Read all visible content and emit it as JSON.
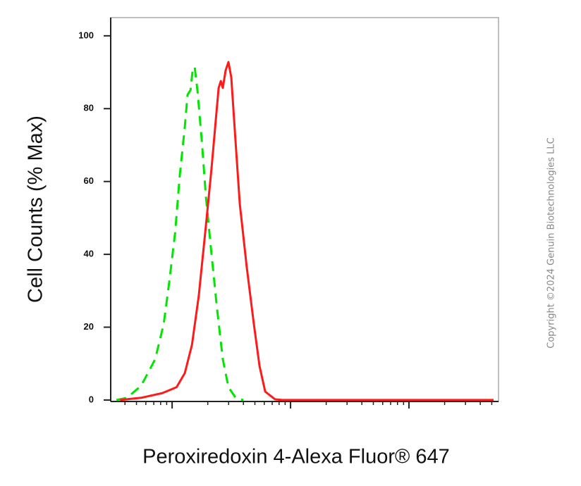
{
  "chart_data": {
    "type": "line",
    "x_label": "Peroxiredoxin 4-Alexa Fluor® 647",
    "y_label": "Cell Counts (% Max)",
    "copyright": "Copyright ©2024 Genuin Biotechnologies LLC",
    "x_log": true,
    "xlim": [
      3.03,
      5700
    ],
    "ylim": [
      -0.4,
      105
    ],
    "xticks": [
      10,
      100,
      1000
    ],
    "x_minor_ticks": [
      4,
      5,
      6,
      7,
      8,
      9,
      20,
      30,
      40,
      50,
      60,
      70,
      80,
      90,
      200,
      300,
      400,
      500,
      600,
      700,
      800,
      900,
      2000,
      3000,
      4000,
      5000
    ],
    "yticks": [
      0,
      20,
      40,
      60,
      80,
      100
    ],
    "series": [
      {
        "color": "#00e600",
        "dash": true,
        "x": [
          3.39,
          4.16,
          5.47,
          7.2,
          8.49,
          9.47,
          10.6,
          11.6,
          12.8,
          13.5,
          14.3,
          14.9,
          15.5,
          16.4,
          17.8,
          19.3,
          21.5,
          24.0,
          26.8,
          29.9,
          34.8,
          39.9
        ],
        "values": [
          0,
          0.6,
          3.9,
          11.2,
          20.9,
          32.5,
          46,
          61.5,
          75,
          83.8,
          85.1,
          90.5,
          91.5,
          84.7,
          71.2,
          55.7,
          40.2,
          24.8,
          11.2,
          3.5,
          0.4,
          0
        ]
      },
      {
        "color": "#ff1a1a",
        "dash": false,
        "x": [
          3.63,
          5.47,
          8.26,
          10.9,
          12.8,
          14.7,
          16.8,
          19.3,
          21.5,
          23.4,
          24.7,
          25.8,
          26.8,
          28.3,
          29.9,
          31.6,
          34.3,
          37.3,
          42.7,
          49.0,
          54.7,
          61.1,
          74.0,
          84.9,
          5180
        ],
        "values": [
          0,
          0.6,
          1.9,
          3.5,
          7.4,
          15.1,
          28.6,
          48,
          63.4,
          77,
          85.7,
          87.6,
          85.7,
          90.5,
          92.8,
          88.6,
          71.2,
          53.8,
          36.4,
          20.9,
          9.3,
          2.3,
          0.2,
          0,
          0
        ]
      }
    ]
  }
}
